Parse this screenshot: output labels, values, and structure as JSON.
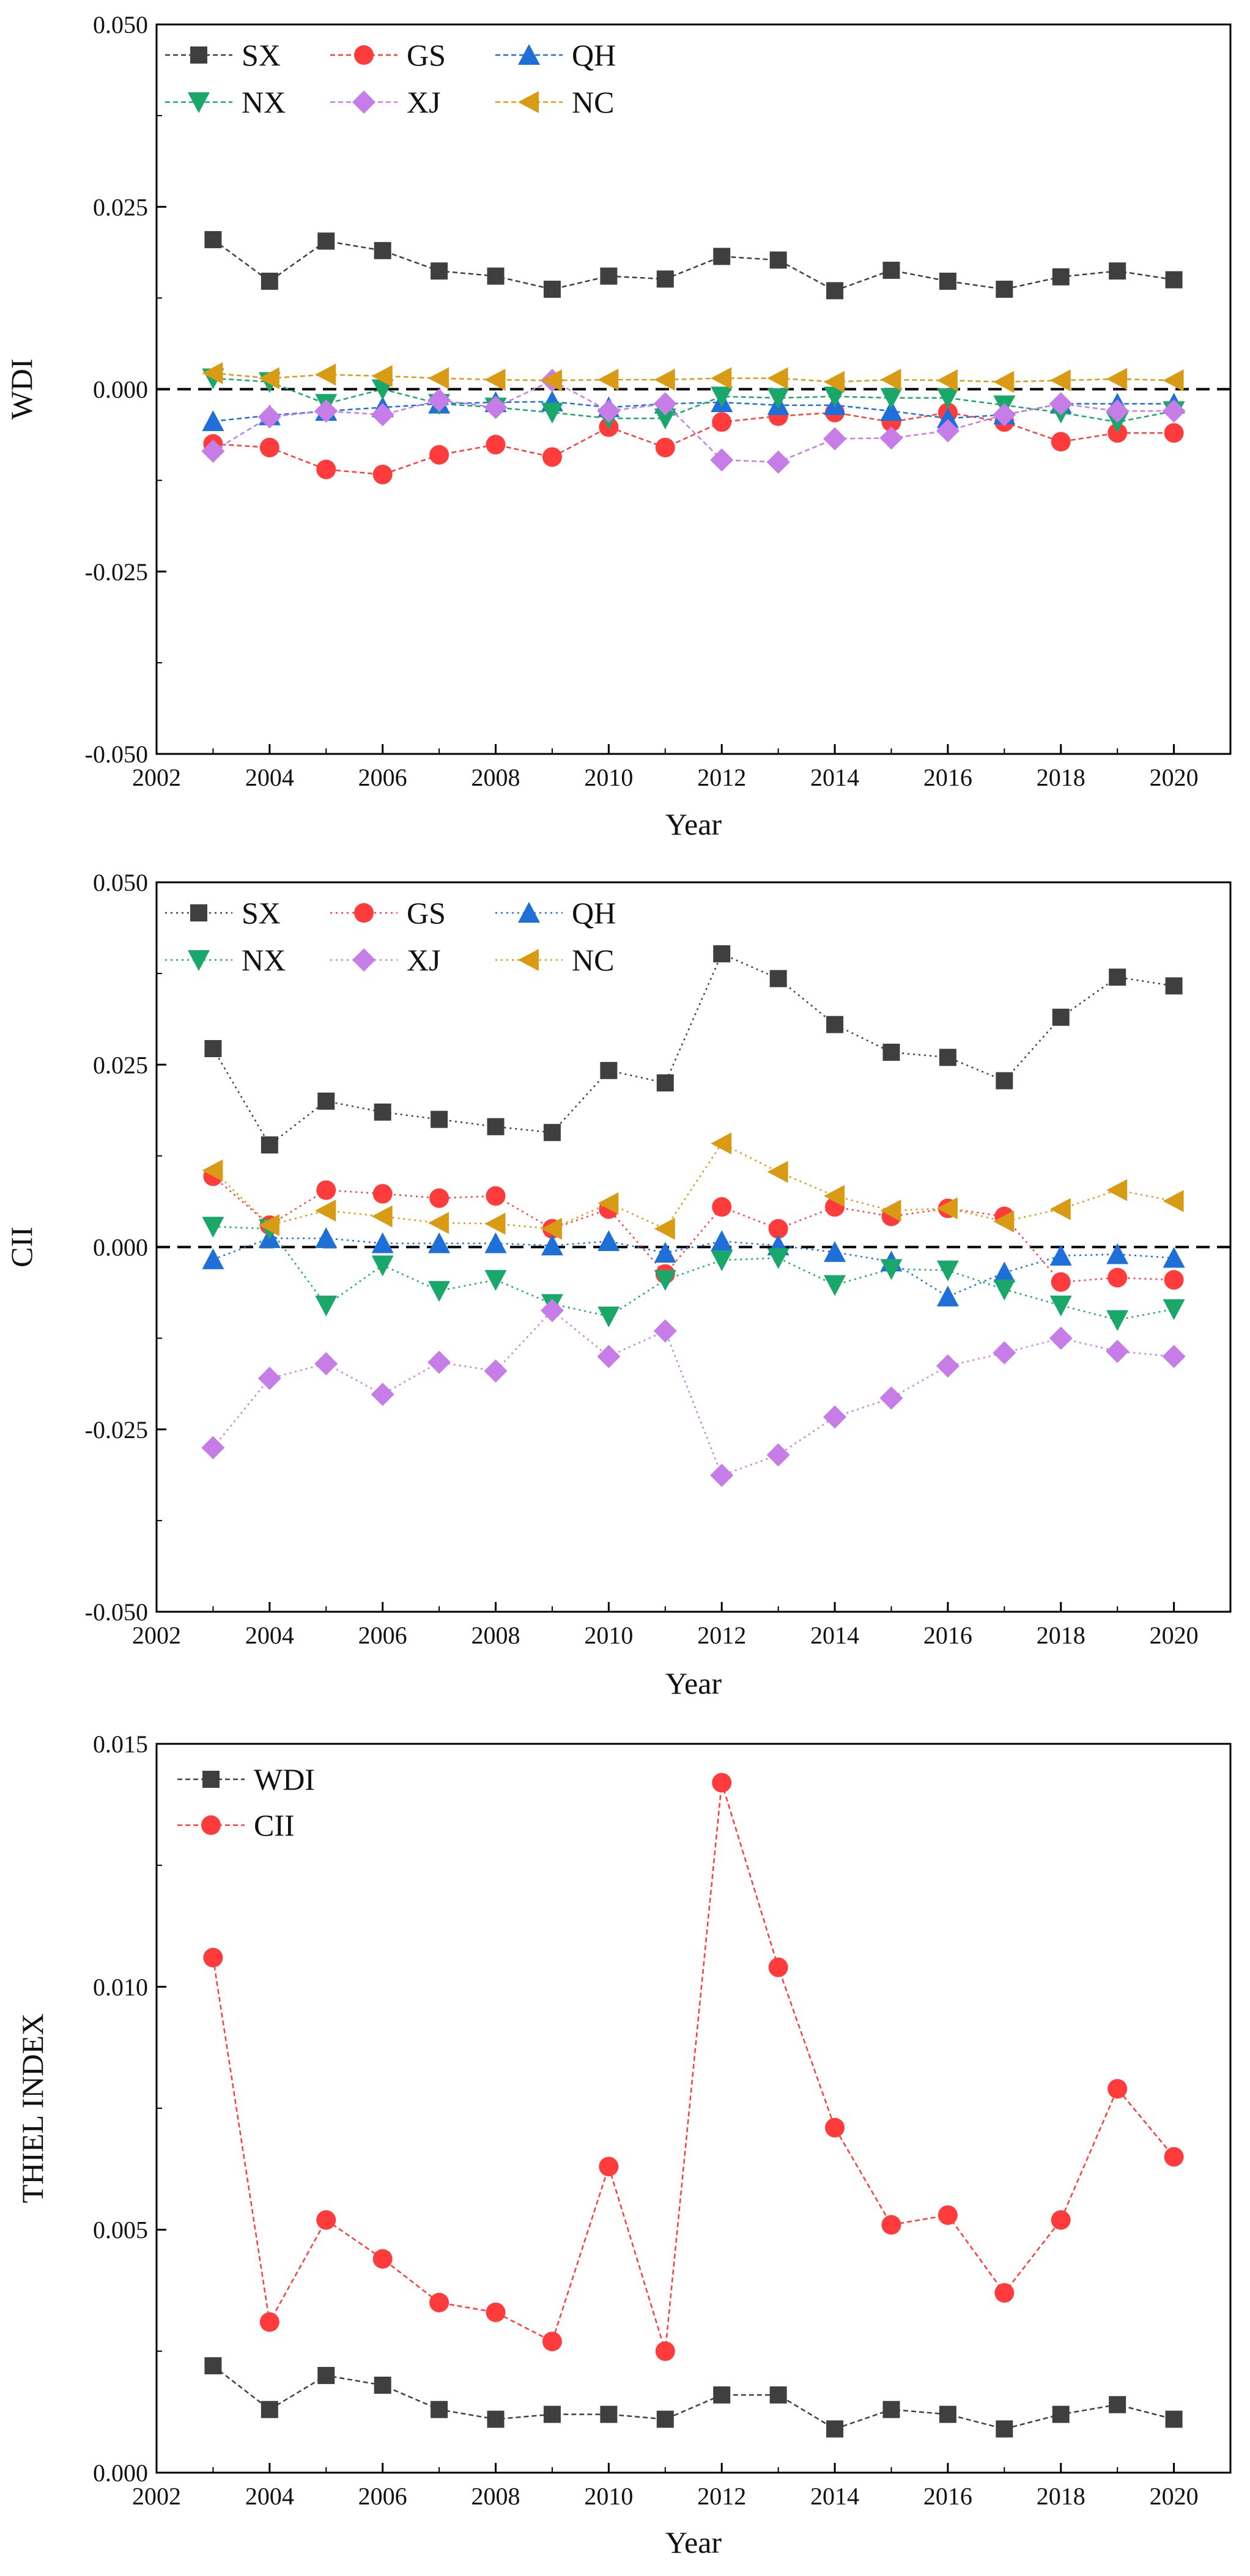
{
  "figure": {
    "description_panels": 3
  },
  "colors": {
    "SX": "#3f3f3f",
    "GS": "#ff3b3b",
    "QH": "#1f6fd8",
    "NX": "#1aa86a",
    "XJ": "#c77de8",
    "NC": "#d99a14",
    "WDI": "#3f3f3f",
    "CII": "#ff3b3b",
    "axis": "#000000",
    "zero_line": "#000000"
  },
  "chart_data": [
    {
      "id": "wdi",
      "type": "line",
      "title": "",
      "xlabel": "Year",
      "ylabel": "WDI",
      "xlim": [
        2002,
        2021
      ],
      "ylim": [
        -0.05,
        0.05
      ],
      "xticks": [
        "2002",
        "2004",
        "2006",
        "2008",
        "2010",
        "2012",
        "2014",
        "2016",
        "2018",
        "2020"
      ],
      "yticks": [
        "-0.050",
        "-0.025",
        "0.000",
        "0.025",
        "0.050"
      ],
      "zero_line": true,
      "legend_rows": [
        [
          "SX",
          "GS",
          "QH"
        ],
        [
          "NX",
          "XJ",
          "NC"
        ]
      ],
      "x": [
        2003,
        2004,
        2005,
        2006,
        2007,
        2008,
        2009,
        2010,
        2011,
        2012,
        2013,
        2014,
        2015,
        2016,
        2017,
        2018,
        2019,
        2020
      ],
      "series": [
        {
          "name": "SX",
          "marker": "square",
          "values": [
            0.0205,
            0.0148,
            0.0203,
            0.019,
            0.0162,
            0.0155,
            0.0137,
            0.0155,
            0.0151,
            0.0182,
            0.0177,
            0.0135,
            0.0163,
            0.0148,
            0.0137,
            0.0154,
            0.0162,
            0.015
          ]
        },
        {
          "name": "GS",
          "marker": "circle",
          "values": [
            -0.0075,
            -0.008,
            -0.011,
            -0.0117,
            -0.009,
            -0.0076,
            -0.0093,
            -0.0052,
            -0.008,
            -0.0045,
            -0.0037,
            -0.0032,
            -0.0045,
            -0.0032,
            -0.0045,
            -0.0072,
            -0.006,
            -0.006
          ]
        },
        {
          "name": "QH",
          "marker": "triangle-up",
          "values": [
            -0.0044,
            -0.0036,
            -0.003,
            -0.0025,
            -0.002,
            -0.0018,
            -0.0017,
            -0.0025,
            -0.002,
            -0.0018,
            -0.0022,
            -0.0022,
            -0.003,
            -0.004,
            -0.0035,
            -0.002,
            -0.002,
            -0.002
          ]
        },
        {
          "name": "NX",
          "marker": "triangle-down",
          "values": [
            0.0015,
            0.001,
            -0.002,
            0.0,
            -0.002,
            -0.0025,
            -0.0032,
            -0.004,
            -0.004,
            -0.001,
            -0.0012,
            -0.001,
            -0.0012,
            -0.0012,
            -0.0022,
            -0.0032,
            -0.0045,
            -0.003
          ]
        },
        {
          "name": "XJ",
          "marker": "diamond",
          "values": [
            -0.0085,
            -0.0038,
            -0.003,
            -0.0035,
            -0.0015,
            -0.0025,
            0.0012,
            -0.003,
            -0.002,
            -0.0097,
            -0.01,
            -0.0068,
            -0.0067,
            -0.0057,
            -0.0035,
            -0.002,
            -0.003,
            -0.003
          ]
        },
        {
          "name": "NC",
          "marker": "triangle-left",
          "values": [
            0.0022,
            0.0015,
            0.002,
            0.0018,
            0.0015,
            0.0013,
            0.0012,
            0.0013,
            0.0013,
            0.0015,
            0.0015,
            0.001,
            0.0013,
            0.0012,
            0.001,
            0.0012,
            0.0014,
            0.0012
          ]
        }
      ]
    },
    {
      "id": "cii",
      "type": "line",
      "title": "",
      "xlabel": "Year",
      "ylabel": "CII",
      "xlim": [
        2002,
        2021
      ],
      "ylim": [
        -0.05,
        0.05
      ],
      "xticks": [
        "2002",
        "2004",
        "2006",
        "2008",
        "2010",
        "2012",
        "2014",
        "2016",
        "2018",
        "2020"
      ],
      "yticks": [
        "-0.050",
        "-0.025",
        "0.000",
        "0.025",
        "0.050"
      ],
      "zero_line": true,
      "legend_rows": [
        [
          "SX",
          "GS",
          "QH"
        ],
        [
          "NX",
          "XJ",
          "NC"
        ]
      ],
      "x": [
        2003,
        2004,
        2005,
        2006,
        2007,
        2008,
        2009,
        2010,
        2011,
        2012,
        2013,
        2014,
        2015,
        2016,
        2017,
        2018,
        2019,
        2020
      ],
      "series": [
        {
          "name": "SX",
          "marker": "square",
          "values": [
            0.0272,
            0.014,
            0.02,
            0.0185,
            0.0175,
            0.0165,
            0.0157,
            0.0242,
            0.0225,
            0.0402,
            0.0368,
            0.0305,
            0.0267,
            0.026,
            0.0228,
            0.0315,
            0.037,
            0.0358
          ]
        },
        {
          "name": "GS",
          "marker": "circle",
          "values": [
            0.0097,
            0.003,
            0.0078,
            0.0073,
            0.0067,
            0.007,
            0.0025,
            0.0052,
            -0.0037,
            0.0055,
            0.0025,
            0.0055,
            0.0042,
            0.0053,
            0.0042,
            -0.0048,
            -0.0042,
            -0.0045
          ]
        },
        {
          "name": "QH",
          "marker": "triangle-up",
          "values": [
            -0.0017,
            0.0012,
            0.0012,
            0.0005,
            0.0005,
            0.0005,
            0.0002,
            0.0008,
            -0.0008,
            0.0008,
            0.0002,
            -0.0007,
            -0.002,
            -0.0068,
            -0.0035,
            -0.0012,
            -0.001,
            -0.0015
          ]
        },
        {
          "name": "NX",
          "marker": "triangle-down",
          "values": [
            0.0028,
            0.0025,
            -0.008,
            -0.0025,
            -0.006,
            -0.0045,
            -0.0078,
            -0.0095,
            -0.0045,
            -0.0018,
            -0.0015,
            -0.0052,
            -0.003,
            -0.0032,
            -0.0058,
            -0.008,
            -0.01,
            -0.0085
          ]
        },
        {
          "name": "XJ",
          "marker": "diamond",
          "values": [
            -0.0275,
            -0.018,
            -0.016,
            -0.0202,
            -0.0158,
            -0.017,
            -0.0087,
            -0.015,
            -0.0115,
            -0.0313,
            -0.0285,
            -0.0233,
            -0.0207,
            -0.0163,
            -0.0145,
            -0.0125,
            -0.0143,
            -0.015
          ]
        },
        {
          "name": "NC",
          "marker": "triangle-left",
          "values": [
            0.0105,
            0.003,
            0.005,
            0.0042,
            0.0033,
            0.0032,
            0.0025,
            0.006,
            0.0025,
            0.0142,
            0.0103,
            0.007,
            0.005,
            0.0053,
            0.0035,
            0.0052,
            0.0078,
            0.0063
          ]
        }
      ]
    },
    {
      "id": "thiel",
      "type": "line",
      "title": "",
      "xlabel": "Year",
      "ylabel": "THIEL INDEX",
      "xlim": [
        2002,
        2021
      ],
      "ylim": [
        0,
        0.015
      ],
      "xticks": [
        "2002",
        "2004",
        "2006",
        "2008",
        "2010",
        "2012",
        "2014",
        "2016",
        "2018",
        "2020"
      ],
      "yticks": [
        "0.000",
        "0.005",
        "0.010",
        "0.015"
      ],
      "zero_line": false,
      "legend_rows": [
        [
          "WDI"
        ],
        [
          "CII"
        ]
      ],
      "x": [
        2003,
        2004,
        2005,
        2006,
        2007,
        2008,
        2009,
        2010,
        2011,
        2012,
        2013,
        2014,
        2015,
        2016,
        2017,
        2018,
        2019,
        2020
      ],
      "series": [
        {
          "name": "WDI",
          "marker": "square",
          "values": [
            0.0022,
            0.0013,
            0.002,
            0.0018,
            0.0013,
            0.0011,
            0.0012,
            0.0012,
            0.0011,
            0.0016,
            0.0016,
            0.0009,
            0.0013,
            0.0012,
            0.0009,
            0.0012,
            0.0014,
            0.0011
          ]
        },
        {
          "name": "CII",
          "marker": "circle",
          "values": [
            0.0106,
            0.0031,
            0.0052,
            0.0044,
            0.0035,
            0.0033,
            0.0027,
            0.0063,
            0.0025,
            0.0142,
            0.0104,
            0.0071,
            0.0051,
            0.0053,
            0.0037,
            0.0052,
            0.0079,
            0.0065
          ]
        }
      ]
    }
  ]
}
